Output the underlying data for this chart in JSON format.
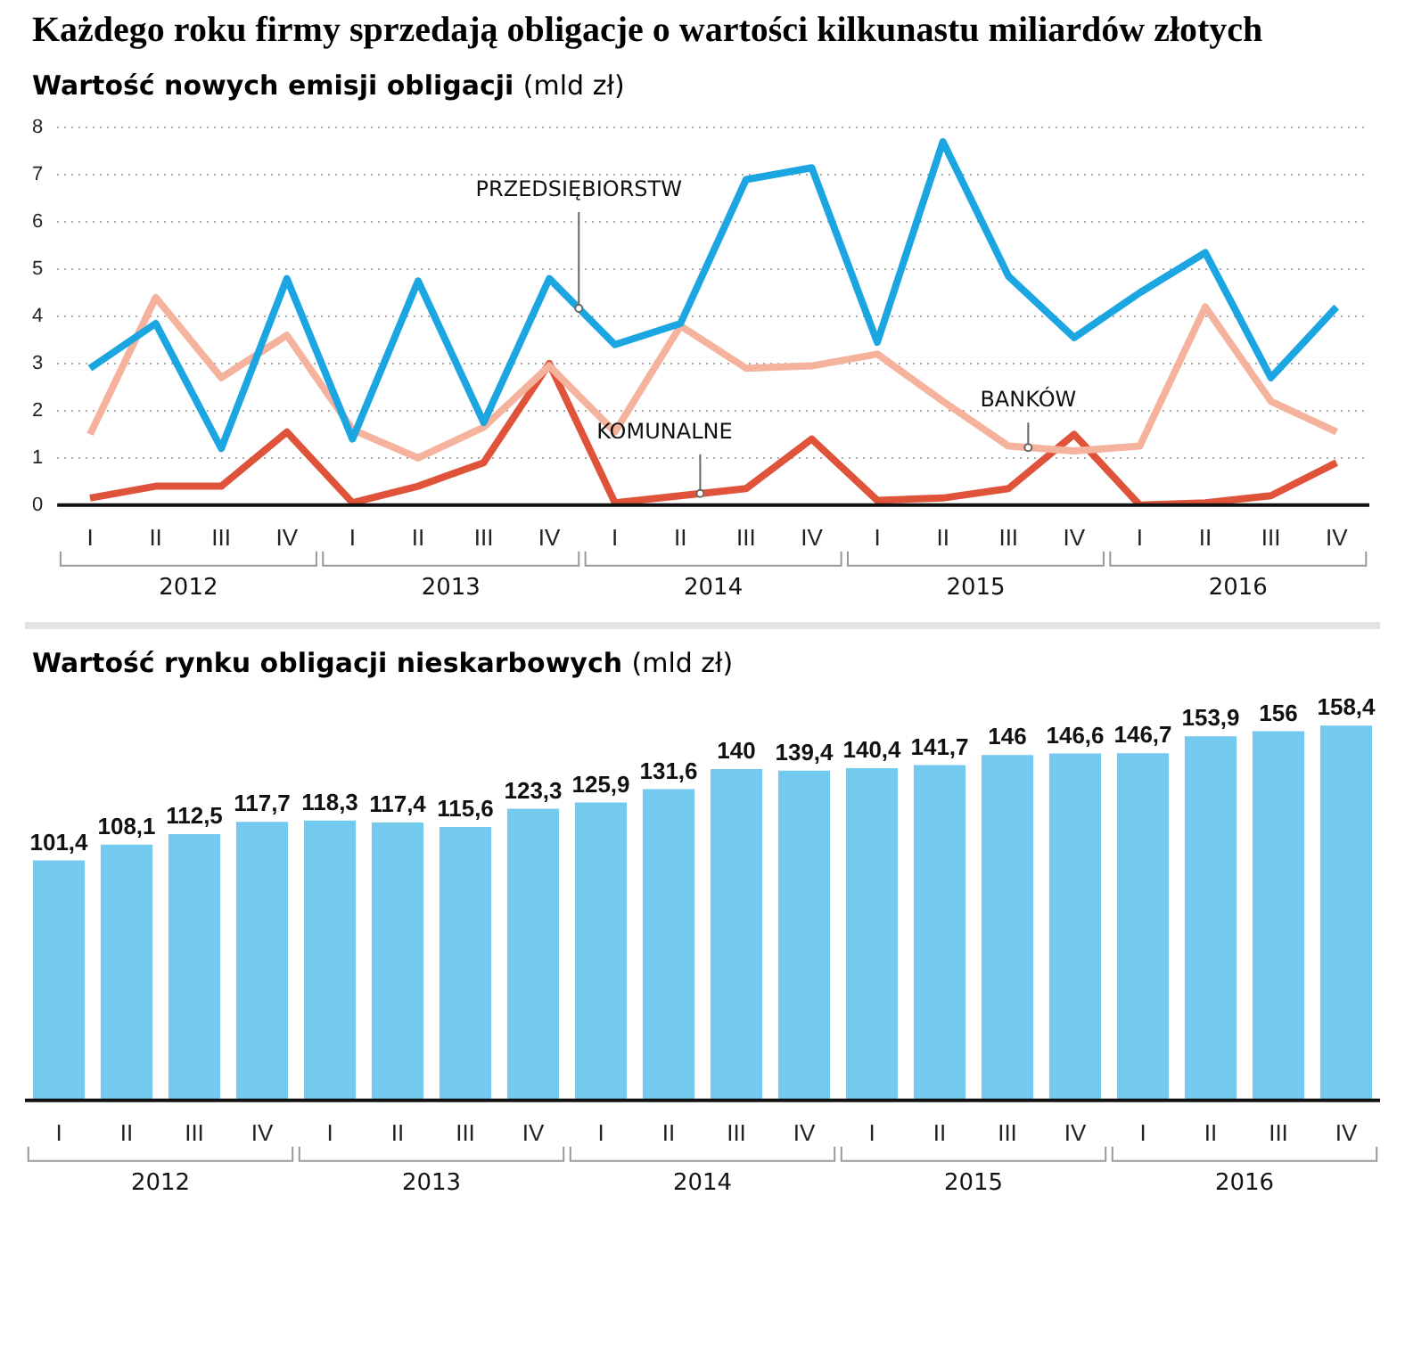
{
  "chart_data": [
    {
      "type": "line",
      "title": "Każdego roku firmy sprzedają obligacje o wartości kilkunastu miliardów złotych",
      "subtitle": "Wartość nowych emisji obligacji (mld zł)",
      "categories": [
        "I",
        "II",
        "III",
        "IV",
        "I",
        "II",
        "III",
        "IV",
        "I",
        "II",
        "III",
        "IV",
        "I",
        "II",
        "III",
        "IV",
        "I",
        "II",
        "III",
        "IV"
      ],
      "annotations": [
        "2012",
        "2013",
        "2014",
        "2015",
        "2016"
      ],
      "series": [
        {
          "name": "PRZEDSIĘBIORSTW",
          "color": "#1ba6e2",
          "values": [
            2.9,
            3.85,
            1.2,
            4.8,
            1.4,
            4.75,
            1.75,
            4.8,
            3.4,
            3.85,
            6.9,
            7.15,
            3.45,
            7.7,
            4.85,
            3.55,
            4.5,
            5.35,
            2.7,
            4.2
          ]
        },
        {
          "name": "BANKÓW",
          "color": "#f5b29c",
          "values": [
            1.5,
            4.4,
            2.7,
            3.6,
            1.6,
            1.0,
            1.65,
            2.95,
            1.55,
            3.8,
            2.9,
            2.95,
            3.2,
            2.2,
            1.25,
            1.15,
            1.25,
            4.2,
            2.2,
            1.55
          ]
        },
        {
          "name": "KOMUNALNE",
          "color": "#e0533b",
          "values": [
            0.15,
            0.4,
            0.4,
            1.55,
            0.05,
            0.4,
            0.9,
            3.0,
            0.05,
            0.2,
            0.35,
            1.4,
            0.1,
            0.15,
            0.35,
            1.5,
            0.0,
            0.05,
            0.2,
            0.9
          ]
        }
      ],
      "ylim": [
        0,
        8
      ],
      "yticks": [
        0,
        1,
        2,
        3,
        4,
        5,
        6,
        7,
        8
      ],
      "grid": "y",
      "legend": false,
      "marker": "none",
      "line_style": "solid"
    },
    {
      "type": "bar",
      "title": "Wartość rynku obligacji nieskarbowych (mld zł)",
      "categories": [
        "I",
        "II",
        "III",
        "IV",
        "I",
        "II",
        "III",
        "IV",
        "I",
        "II",
        "III",
        "IV",
        "I",
        "II",
        "III",
        "IV",
        "I",
        "II",
        "III",
        "IV"
      ],
      "annotations": [
        "2012",
        "2013",
        "2014",
        "2015",
        "2016"
      ],
      "values": [
        101.4,
        108.1,
        112.5,
        117.7,
        118.3,
        117.4,
        115.6,
        123.3,
        125.9,
        131.6,
        140,
        139.4,
        140.4,
        141.7,
        146,
        146.6,
        146.7,
        153.9,
        156,
        158.4
      ],
      "value_labels": [
        "101,4",
        "108,1",
        "112,5",
        "117,7",
        "118,3",
        "117,4",
        "115,6",
        "123,3",
        "125,9",
        "131,6",
        "140",
        "139,4",
        "140,4",
        "141,7",
        "146",
        "146,6",
        "146,7",
        "153,9",
        "156",
        "158,4"
      ],
      "color": "#74c9ef",
      "tick_labels": "x"
    }
  ]
}
